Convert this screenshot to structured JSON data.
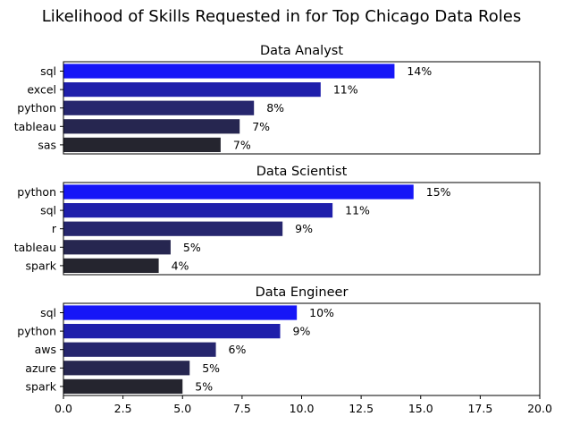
{
  "chart_data": {
    "type": "bar",
    "orientation": "horizontal",
    "title": "Likelihood of Skills Requested in for Top Chicago Data Roles",
    "xlim": [
      0,
      20
    ],
    "x_ticks": [
      "0.0",
      "2.5",
      "5.0",
      "7.5",
      "10.0",
      "12.5",
      "15.0",
      "17.5",
      "20.0"
    ],
    "grid": false,
    "subplots": [
      {
        "title": "Data Analyst",
        "categories": [
          "sql",
          "excel",
          "python",
          "tableau",
          "sas"
        ],
        "values": [
          13.9,
          10.8,
          8.0,
          7.4,
          6.6
        ],
        "labels": [
          "14%",
          "11%",
          "8%",
          "7%",
          "7%"
        ]
      },
      {
        "title": "Data Scientist",
        "categories": [
          "python",
          "sql",
          "r",
          "tableau",
          "spark"
        ],
        "values": [
          14.7,
          11.3,
          9.2,
          4.5,
          4.0
        ],
        "labels": [
          "15%",
          "11%",
          "9%",
          "5%",
          "4%"
        ]
      },
      {
        "title": "Data Engineer",
        "categories": [
          "sql",
          "python",
          "aws",
          "azure",
          "spark"
        ],
        "values": [
          9.8,
          9.1,
          6.4,
          5.3,
          5.0
        ],
        "labels": [
          "10%",
          "9%",
          "6%",
          "5%",
          "5%"
        ]
      }
    ],
    "colors": [
      "#1616f7",
      "#1f1fab",
      "#26266e",
      "#262650",
      "#25252f"
    ]
  }
}
